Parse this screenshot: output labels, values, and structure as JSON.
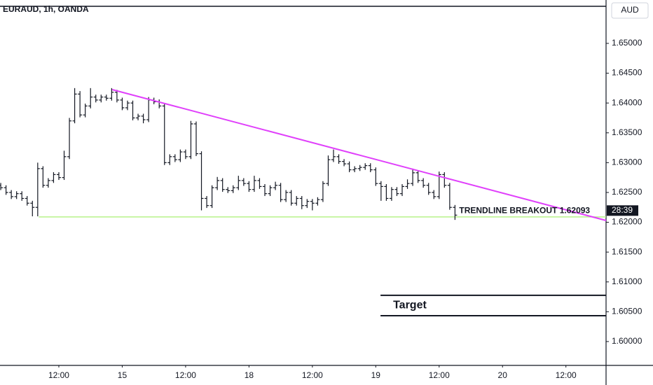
{
  "chart_data": {
    "type": "ohlc",
    "title": "EURAUD, 1h, OANDA",
    "currency": "AUD",
    "countdown": "28:39",
    "color": "#131722",
    "x": [
      1,
      2,
      3,
      4,
      5,
      6,
      7,
      8,
      9,
      10,
      11,
      12,
      13,
      14,
      15,
      16,
      17,
      18,
      19,
      20,
      21,
      22,
      23,
      24,
      25,
      26,
      27,
      28,
      29,
      30,
      31,
      32,
      33,
      34,
      35,
      36,
      37,
      38,
      39,
      40,
      41,
      42,
      43,
      44,
      45,
      46,
      47,
      48,
      49,
      50,
      51,
      52,
      53,
      54,
      55,
      56,
      57,
      58,
      59,
      60,
      61,
      62,
      63,
      64,
      65,
      66,
      67,
      68,
      69,
      70,
      71,
      72,
      73,
      74,
      75,
      76,
      77,
      78,
      79,
      80,
      81,
      82,
      83,
      84,
      85,
      86,
      87
    ],
    "open": [
      1.6262,
      1.6258,
      1.625,
      1.6243,
      1.6248,
      1.624,
      1.6232,
      1.6225,
      1.629,
      1.6262,
      1.627,
      1.628,
      1.6275,
      1.631,
      1.637,
      1.6415,
      1.638,
      1.6395,
      1.641,
      1.6405,
      1.641,
      1.6408,
      1.6418,
      1.6405,
      1.6392,
      1.64,
      1.6375,
      1.6378,
      1.6372,
      1.6405,
      1.6402,
      1.6395,
      1.63,
      1.631,
      1.6305,
      1.6318,
      1.631,
      1.6365,
      1.6315,
      1.624,
      1.6228,
      1.6258,
      1.627,
      1.6255,
      1.6253,
      1.6258,
      1.627,
      1.6265,
      1.6255,
      1.627,
      1.626,
      1.6248,
      1.6258,
      1.6262,
      1.6238,
      1.625,
      1.6232,
      1.624,
      1.6228,
      1.6235,
      1.6232,
      1.6238,
      1.6265,
      1.6305,
      1.631,
      1.6302,
      1.6298,
      1.6288,
      1.629,
      1.6292,
      1.6295,
      1.6288,
      1.6265,
      1.626,
      1.624,
      1.6255,
      1.6248,
      1.626,
      1.6265,
      1.6283,
      1.627,
      1.6262,
      1.625,
      1.6243,
      1.628,
      1.6262,
      1.6225
    ],
    "high": [
      1.6266,
      1.6262,
      1.6254,
      1.6252,
      1.6252,
      1.6244,
      1.6236,
      1.63,
      1.6294,
      1.6274,
      1.6284,
      1.6284,
      1.632,
      1.6375,
      1.6425,
      1.642,
      1.6399,
      1.6425,
      1.6414,
      1.6414,
      1.6414,
      1.6425,
      1.6422,
      1.6409,
      1.6404,
      1.6404,
      1.6382,
      1.6382,
      1.641,
      1.6409,
      1.6406,
      1.6399,
      1.6314,
      1.6314,
      1.6322,
      1.6322,
      1.637,
      1.6369,
      1.6319,
      1.6244,
      1.6262,
      1.6276,
      1.6274,
      1.6259,
      1.6262,
      1.6278,
      1.6274,
      1.6269,
      1.6278,
      1.6274,
      1.6264,
      1.6262,
      1.6268,
      1.6266,
      1.6254,
      1.6254,
      1.6244,
      1.6244,
      1.6239,
      1.6239,
      1.6242,
      1.6269,
      1.6312,
      1.6322,
      1.6314,
      1.6306,
      1.6302,
      1.6294,
      1.6296,
      1.6299,
      1.6299,
      1.6292,
      1.6269,
      1.6264,
      1.6259,
      1.6259,
      1.6264,
      1.6272,
      1.629,
      1.6287,
      1.6274,
      1.6266,
      1.6254,
      1.6285,
      1.6284,
      1.6266,
      1.6229
    ],
    "low": [
      1.6254,
      1.6246,
      1.6239,
      1.6239,
      1.6236,
      1.6228,
      1.621,
      1.621,
      1.6258,
      1.6258,
      1.6266,
      1.6271,
      1.6271,
      1.6306,
      1.6366,
      1.6376,
      1.6376,
      1.6391,
      1.6401,
      1.6401,
      1.6404,
      1.6404,
      1.6401,
      1.6388,
      1.6388,
      1.6371,
      1.6371,
      1.6366,
      1.6368,
      1.6398,
      1.6391,
      1.6296,
      1.6296,
      1.6301,
      1.6301,
      1.6306,
      1.6306,
      1.6311,
      1.622,
      1.6224,
      1.6224,
      1.6254,
      1.6251,
      1.6249,
      1.6249,
      1.6254,
      1.6261,
      1.6251,
      1.6251,
      1.6256,
      1.6244,
      1.6244,
      1.6254,
      1.6234,
      1.6234,
      1.6228,
      1.6228,
      1.6222,
      1.6224,
      1.622,
      1.6228,
      1.6234,
      1.6261,
      1.6301,
      1.6298,
      1.6294,
      1.6284,
      1.6284,
      1.6286,
      1.6288,
      1.6284,
      1.6261,
      1.6236,
      1.6236,
      1.6236,
      1.6244,
      1.6244,
      1.6256,
      1.6261,
      1.6266,
      1.6258,
      1.6246,
      1.6239,
      1.6239,
      1.6258,
      1.6221,
      1.6204
    ],
    "close": [
      1.6258,
      1.625,
      1.6243,
      1.6248,
      1.624,
      1.6232,
      1.6225,
      1.629,
      1.6262,
      1.627,
      1.628,
      1.6275,
      1.631,
      1.637,
      1.6415,
      1.638,
      1.6395,
      1.641,
      1.6405,
      1.641,
      1.6408,
      1.6418,
      1.6405,
      1.6392,
      1.64,
      1.6375,
      1.6378,
      1.6372,
      1.6405,
      1.6402,
      1.6395,
      1.63,
      1.631,
      1.6305,
      1.6318,
      1.631,
      1.6365,
      1.6315,
      1.624,
      1.6228,
      1.6258,
      1.627,
      1.6255,
      1.6253,
      1.6258,
      1.627,
      1.6265,
      1.6255,
      1.627,
      1.626,
      1.6248,
      1.6258,
      1.6262,
      1.6238,
      1.625,
      1.6232,
      1.624,
      1.6228,
      1.6235,
      1.6232,
      1.6238,
      1.6265,
      1.6305,
      1.631,
      1.6302,
      1.6298,
      1.6288,
      1.629,
      1.6292,
      1.6295,
      1.6288,
      1.6265,
      1.626,
      1.624,
      1.6255,
      1.6248,
      1.626,
      1.6265,
      1.6283,
      1.627,
      1.6262,
      1.625,
      1.6243,
      1.628,
      1.6262,
      1.6225,
      1.6212
    ],
    "xlim": [
      0.86,
      115.6
    ],
    "xticks": [
      {
        "value": 12,
        "label": "12:00"
      },
      {
        "value": 24,
        "label": "15"
      },
      {
        "value": 36,
        "label": "12:00"
      },
      {
        "value": 48,
        "label": "18"
      },
      {
        "value": 60,
        "label": "12:00"
      },
      {
        "value": 72,
        "label": "19"
      },
      {
        "value": 84,
        "label": "12:00"
      },
      {
        "value": 96,
        "label": "20"
      },
      {
        "value": 108,
        "label": "12:00"
      }
    ],
    "ylim": [
      1.596,
      1.6561
    ],
    "yticks": [
      {
        "value": 1.65,
        "label": "1.65000"
      },
      {
        "value": 1.645,
        "label": "1.64500"
      },
      {
        "value": 1.64,
        "label": "1.64000"
      },
      {
        "value": 1.635,
        "label": "1.63500"
      },
      {
        "value": 1.63,
        "label": "1.63000"
      },
      {
        "value": 1.625,
        "label": "1.62500"
      },
      {
        "value": 1.62,
        "label": "1.62000"
      },
      {
        "value": 1.615,
        "label": "1.61500"
      },
      {
        "value": 1.61,
        "label": "1.61000"
      },
      {
        "value": 1.605,
        "label": "1.60500"
      },
      {
        "value": 1.6,
        "label": "1.60000"
      }
    ],
    "grid": false,
    "trendline": {
      "x": [
        22.1,
        115.6
      ],
      "y": [
        1.64225,
        1.6203
      ],
      "color": "#e040fb"
    },
    "breakout_line": {
      "x_start": 8.2,
      "value": 1.6209,
      "color": "#b7f28a"
    },
    "breakout_label": "TRENDLINE BREAKOUT 1.62093",
    "target_zone": {
      "label": "Target",
      "x_start": 72.9,
      "y": [
        1.60775,
        1.60434
      ]
    }
  }
}
